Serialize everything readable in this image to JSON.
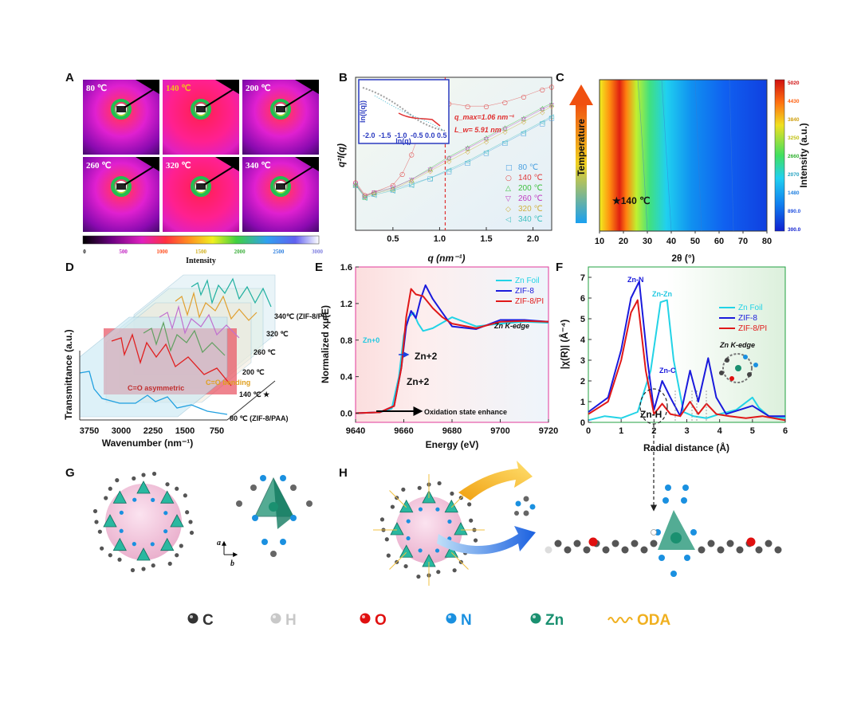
{
  "panel_labels": [
    "A",
    "B",
    "C",
    "D",
    "E",
    "F",
    "G",
    "H"
  ],
  "panelA": {
    "temps": [
      "80 ℃",
      "140 ℃",
      "200 ℃",
      "260 ℃",
      "320 ℃",
      "340 ℃"
    ],
    "colorbar_ticks": [
      "0",
      "500",
      "1000",
      "1500",
      "2000",
      "2500",
      "3000"
    ],
    "colorbar_label": "Intensity"
  },
  "panelD": {
    "ylabel": "Transmittance (a.u.)",
    "xlabel": "Wavenumber (nm⁻¹)",
    "xticks": [
      "3750",
      "3000",
      "2250",
      "1500",
      "750"
    ],
    "trace_labels": [
      "340℃ (ZIF-8/PI)",
      "320 ℃",
      "260 ℃",
      "200 ℃",
      "140 ℃ ★",
      "80 ℃ (ZIF-8/PAA)"
    ],
    "annot_asym": "C=O asymmetric",
    "annot_bend": "C=O bending"
  },
  "colors": {
    "zn_foil": "#22d3e6",
    "zif8": "#1a1adc",
    "zif8pi": "#e01818",
    "magenta": "#e0389a",
    "green_axis": "#20a040"
  },
  "legend_elements": [
    {
      "symbol": "C",
      "color": "#333333"
    },
    {
      "symbol": "H",
      "color": "#c8c8c8"
    },
    {
      "symbol": "O",
      "color": "#e01010"
    },
    {
      "symbol": "N",
      "color": "#1a90e0"
    },
    {
      "symbol": "Zn",
      "color": "#1a9070"
    },
    {
      "symbol": "ODA",
      "color": "#f0b020"
    }
  ],
  "panelG": {
    "axis_a": "a",
    "axis_b": "b"
  },
  "chart_data": [
    {
      "id": "B",
      "type": "scatter",
      "title": "",
      "xlabel": "q (nm⁻¹)",
      "ylabel": "q²I(q)",
      "xlim": [
        0.1,
        2.2
      ],
      "xticks": [
        0.5,
        1.0,
        1.5,
        2.0
      ],
      "xtick_labels": [
        "0.5",
        "1.0",
        "1.5",
        "2.0"
      ],
      "annotation_qmax": "q_max=1.06 nm⁻¹",
      "annotation_lw": "L_w= 5.91 nm",
      "qmax": 1.06,
      "inset": {
        "xlabel": "ln(q)",
        "ylabel": "ln(I(q))",
        "xticks": [
          "-2.0",
          "-1.5",
          "-1.0",
          "-0.5",
          "0.0",
          "0.5"
        ]
      },
      "series": [
        {
          "name": "80 ℃",
          "marker": "□",
          "color": "#4aa0e0",
          "x": [
            0.1,
            0.2,
            0.3,
            0.5,
            0.7,
            0.9,
            1.1,
            1.3,
            1.5,
            1.7,
            1.9,
            2.1,
            2.2
          ],
          "y": [
            0.3,
            0.22,
            0.24,
            0.27,
            0.31,
            0.35,
            0.4,
            0.46,
            0.53,
            0.6,
            0.67,
            0.74,
            0.78
          ]
        },
        {
          "name": "140 ℃",
          "marker": "○",
          "color": "#e04040",
          "x": [
            0.1,
            0.2,
            0.3,
            0.5,
            0.6,
            0.7,
            0.8,
            0.9,
            1.0,
            1.1,
            1.3,
            1.5,
            1.7,
            1.9,
            2.1,
            2.2
          ],
          "y": [
            0.32,
            0.23,
            0.25,
            0.3,
            0.38,
            0.52,
            0.7,
            0.82,
            0.87,
            0.88,
            0.86,
            0.86,
            0.89,
            0.93,
            0.98,
            1.0
          ]
        },
        {
          "name": "200 ℃",
          "marker": "△",
          "color": "#40c040",
          "x": [
            0.1,
            0.2,
            0.3,
            0.5,
            0.7,
            0.9,
            1.1,
            1.3,
            1.5,
            1.7,
            1.9,
            2.1,
            2.2
          ],
          "y": [
            0.31,
            0.22,
            0.25,
            0.28,
            0.34,
            0.42,
            0.5,
            0.57,
            0.64,
            0.71,
            0.78,
            0.85,
            0.88
          ]
        },
        {
          "name": "260 ℃",
          "marker": "▽",
          "color": "#c040c0",
          "x": [
            0.1,
            0.2,
            0.3,
            0.5,
            0.7,
            0.9,
            1.1,
            1.3,
            1.5,
            1.7,
            1.9,
            2.1,
            2.2
          ],
          "y": [
            0.31,
            0.22,
            0.25,
            0.28,
            0.34,
            0.41,
            0.49,
            0.56,
            0.63,
            0.7,
            0.77,
            0.84,
            0.87
          ]
        },
        {
          "name": "320 ℃",
          "marker": "◇",
          "color": "#d0b040",
          "x": [
            0.1,
            0.2,
            0.3,
            0.5,
            0.7,
            0.9,
            1.1,
            1.3,
            1.5,
            1.7,
            1.9,
            2.1,
            2.2
          ],
          "y": [
            0.3,
            0.22,
            0.24,
            0.27,
            0.33,
            0.4,
            0.47,
            0.54,
            0.61,
            0.68,
            0.75,
            0.82,
            0.86
          ]
        },
        {
          "name": "340 ℃",
          "marker": "◁",
          "color": "#40c0c0",
          "x": [
            0.1,
            0.2,
            0.3,
            0.5,
            0.7,
            0.9,
            1.1,
            1.3,
            1.5,
            1.7,
            1.9,
            2.1,
            2.2
          ],
          "y": [
            0.3,
            0.21,
            0.23,
            0.26,
            0.3,
            0.35,
            0.41,
            0.47,
            0.54,
            0.61,
            0.68,
            0.75,
            0.79
          ]
        }
      ]
    },
    {
      "id": "C",
      "type": "heatmap",
      "xlabel": "2θ (°)",
      "xlim": [
        10,
        80
      ],
      "xticks": [
        10,
        20,
        30,
        40,
        50,
        60,
        70,
        80
      ],
      "ylabel": "Temperature",
      "colorbar_label": "Intensity (a.u.)",
      "colorbar_ticks": [
        "5020",
        "4430",
        "3840",
        "3250",
        "2660",
        "2070",
        "1480",
        "890.0",
        "300.0"
      ],
      "peak_2theta": 18,
      "annotation": "★140 ℃"
    },
    {
      "id": "E",
      "type": "line",
      "xlabel": "Energy (eV)",
      "ylabel": "Normalized xμ(E)",
      "xlim": [
        9640,
        9720
      ],
      "ylim": [
        -0.1,
        1.6
      ],
      "xticks": [
        9640,
        9660,
        9680,
        9700,
        9720
      ],
      "yticks": [
        "0.0",
        "0.4",
        "0.8",
        "1.2",
        "1.6"
      ],
      "annotations": [
        "Zn K-edge",
        "Oxidation state enhance",
        "Zn+0",
        "Zn+2",
        "Zn+2"
      ],
      "series": [
        {
          "name": "Zn Foil",
          "color": "#22d3e6",
          "x": [
            9640,
            9650,
            9655,
            9658,
            9660,
            9662,
            9664,
            9666,
            9668,
            9672,
            9680,
            9690,
            9700,
            9710,
            9720
          ],
          "y": [
            0,
            0.01,
            0.05,
            0.4,
            0.85,
            1.05,
            1.1,
            0.98,
            0.9,
            0.93,
            1.05,
            0.95,
            0.98,
            1.0,
            0.99
          ]
        },
        {
          "name": "ZIF-8",
          "color": "#1a1adc",
          "x": [
            9640,
            9650,
            9656,
            9659,
            9661,
            9663,
            9665,
            9667,
            9669,
            9672,
            9676,
            9680,
            9690,
            9700,
            9710,
            9720
          ],
          "y": [
            0,
            0.01,
            0.08,
            0.5,
            0.95,
            1.12,
            1.04,
            1.25,
            1.4,
            1.25,
            1.1,
            0.95,
            0.92,
            1.02,
            1.02,
            1.0
          ]
        },
        {
          "name": "ZIF-8/PI",
          "color": "#e01818",
          "x": [
            9640,
            9650,
            9656,
            9659,
            9661,
            9663,
            9665,
            9668,
            9672,
            9676,
            9680,
            9690,
            9700,
            9710,
            9720
          ],
          "y": [
            0,
            0.01,
            0.08,
            0.5,
            1.05,
            1.36,
            1.3,
            1.28,
            1.15,
            1.05,
            0.98,
            0.93,
            1.0,
            1.01,
            1.0
          ]
        }
      ]
    },
    {
      "id": "F",
      "type": "line",
      "xlabel": "Radial distance (Å)",
      "ylabel": "|χ(R)| (Å⁻⁴)",
      "xlim": [
        0,
        6
      ],
      "ylim": [
        0,
        7.5
      ],
      "xticks": [
        0,
        1,
        2,
        3,
        4,
        5,
        6
      ],
      "yticks": [
        0,
        1,
        2,
        3,
        4,
        5,
        6,
        7
      ],
      "annotations": [
        "Zn-N",
        "Zn-Zn",
        "Zn-C",
        "Zn-H",
        "Zn K-edge"
      ],
      "series": [
        {
          "name": "Zn Foil",
          "color": "#22d3e6",
          "x": [
            0,
            0.5,
            1.0,
            1.5,
            1.9,
            2.2,
            2.4,
            2.6,
            2.9,
            3.2,
            3.6,
            4.0,
            4.5,
            5.0,
            5.2,
            5.5,
            6.0
          ],
          "y": [
            0.1,
            0.3,
            0.2,
            0.5,
            2.5,
            5.8,
            5.9,
            3.0,
            0.5,
            0.3,
            0.2,
            0.4,
            0.6,
            1.2,
            0.7,
            0.3,
            0.2
          ]
        },
        {
          "name": "ZIF-8",
          "color": "#1a1adc",
          "x": [
            0,
            0.6,
            1.0,
            1.3,
            1.55,
            1.8,
            2.0,
            2.25,
            2.5,
            2.8,
            3.1,
            3.35,
            3.65,
            3.9,
            4.2,
            4.6,
            5.0,
            5.5,
            6.0
          ],
          "y": [
            0.5,
            1.2,
            3.5,
            6.0,
            6.8,
            3.0,
            0.6,
            2.0,
            1.2,
            0.3,
            2.5,
            1.0,
            3.1,
            1.2,
            0.4,
            0.6,
            0.8,
            0.3,
            0.3
          ]
        },
        {
          "name": "ZIF-8/PI",
          "color": "#e01818",
          "x": [
            0,
            0.6,
            1.0,
            1.3,
            1.5,
            1.75,
            2.0,
            2.25,
            2.5,
            2.8,
            3.1,
            3.35,
            3.6,
            3.9,
            4.3,
            4.8,
            5.3,
            6.0
          ],
          "y": [
            0.4,
            1.0,
            3.0,
            5.3,
            5.9,
            2.5,
            0.4,
            0.9,
            0.4,
            0.3,
            1.0,
            0.4,
            0.9,
            0.4,
            0.3,
            0.2,
            0.3,
            0.1
          ]
        }
      ]
    }
  ]
}
